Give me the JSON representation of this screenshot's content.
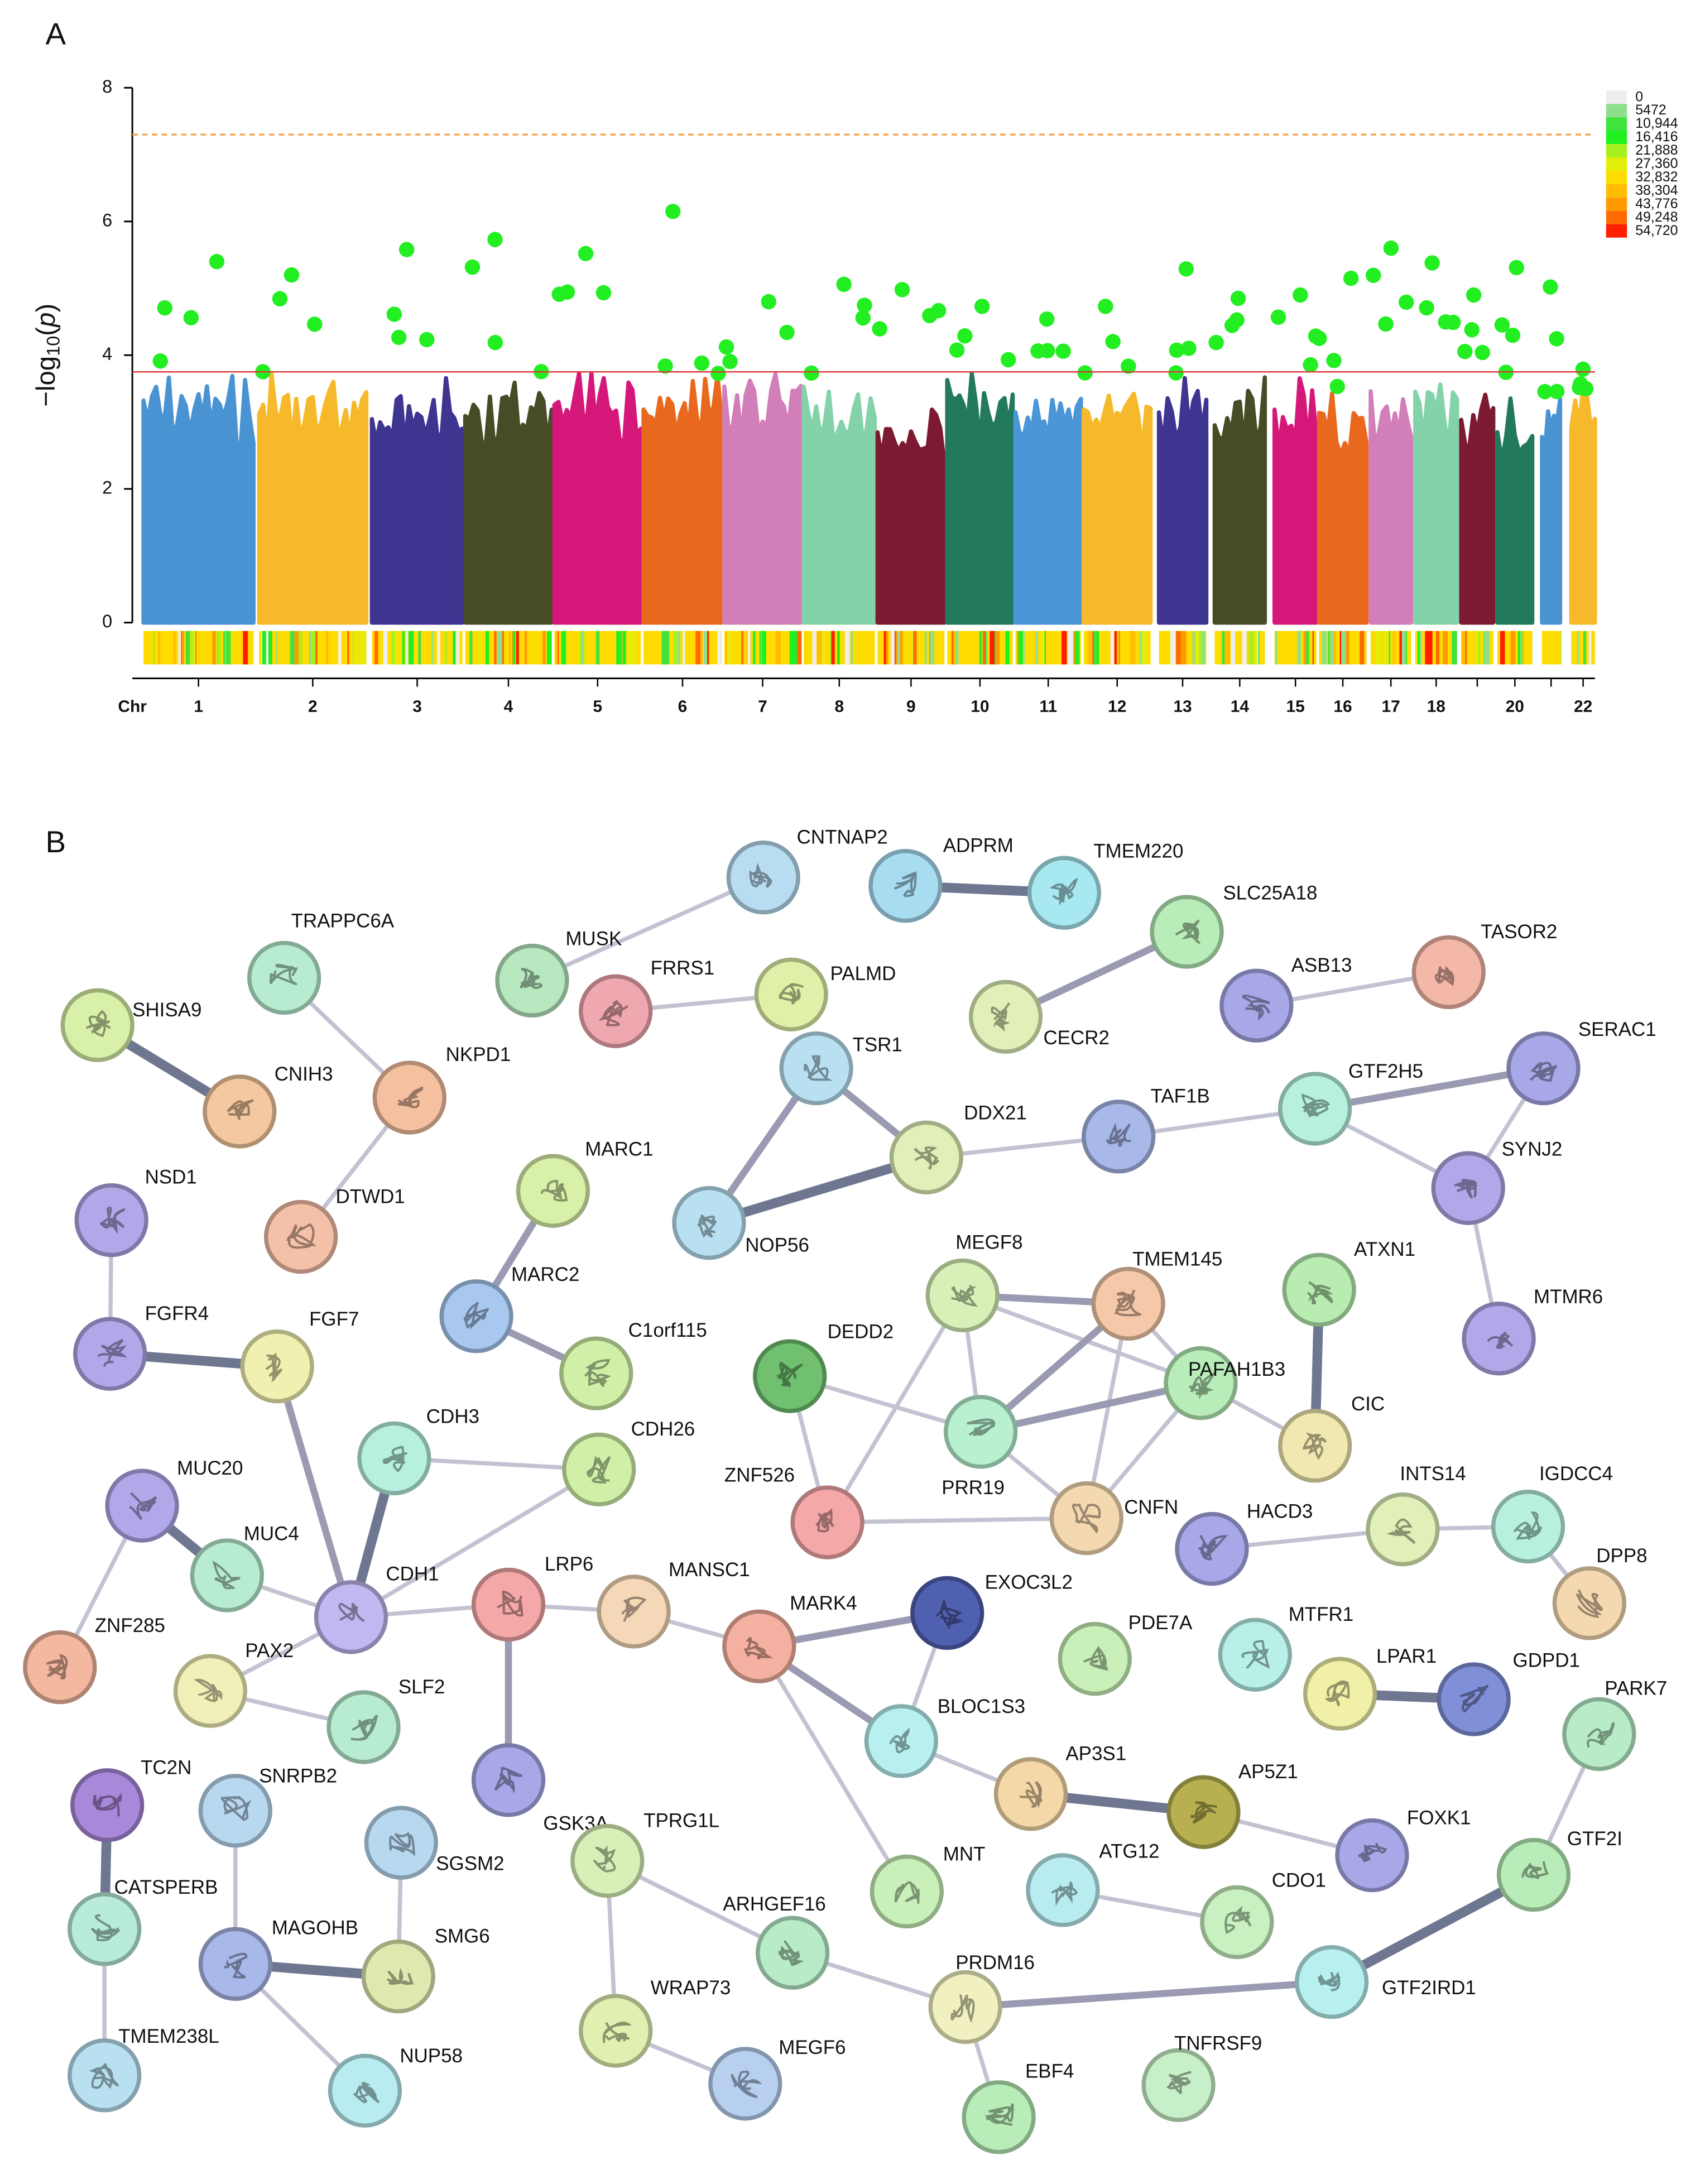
{
  "chart_data": {
    "type": "manhattan",
    "panel": "A",
    "ylabel": [
      "−log",
      "10",
      "(",
      "p",
      ")"
    ],
    "xlabel": "Chr",
    "categories": [
      "1",
      "2",
      "3",
      "4",
      "5",
      "6",
      "7",
      "8",
      "9",
      "10",
      "11",
      "12",
      "13",
      "14",
      "15",
      "16",
      "17",
      "18",
      null,
      "20",
      null,
      "22"
    ],
    "values": [
      5.4,
      5.2,
      5.58,
      5.73,
      5.52,
      6.15,
      4.8,
      5.06,
      4.98,
      4.73,
      4.54,
      4.73,
      5.29,
      4.85,
      4.9,
      5.15,
      5.6,
      5.38,
      4.9,
      5.31,
      5.02,
      3.79
    ],
    "bulk_values": [
      3.73,
      3.73,
      3.7,
      3.7,
      3.73,
      3.7,
      3.73,
      3.7,
      3.44,
      3.73,
      3.68,
      3.6,
      3.68,
      3.73,
      3.68,
      3.44,
      3.68,
      3.68,
      3.5,
      3.44,
      3.44,
      3.73
    ],
    "colors": [
      "#4a93d3",
      "#f6b92b",
      "#3e3591",
      "#474c27",
      "#d6177a",
      "#e8691e",
      "#d27eb8",
      "#84d2a9",
      "#7b1a31",
      "#23795e",
      "#4a96d6",
      "#f6b92b",
      "#3e3591",
      "#474c27",
      "#d6177a",
      "#e8691e",
      "#d27eb8",
      "#84d2a9",
      "#7b1a31",
      "#23795e",
      "#4a93d3",
      "#f6b92b"
    ],
    "peak_color": "#22ee22",
    "hlines": [
      {
        "value": 3.75,
        "color": "#e03a3a",
        "style": "solid"
      },
      {
        "value": 7.3,
        "color": "#f2a24a",
        "style": "dashed"
      }
    ],
    "ylim": [
      0,
      8
    ],
    "yticks": [
      0,
      2,
      4,
      6,
      8
    ],
    "density_legend": {
      "labels": [
        0,
        5472,
        {
          "value": 10944,
          "label": "10,944"
        },
        {
          "value": 16416,
          "label": "16,416"
        },
        {
          "value": 21888,
          "label": "21,888"
        },
        {
          "value": 27360,
          "label": "27,360"
        },
        {
          "value": 32832,
          "label": "32,832"
        },
        {
          "value": 38304,
          "label": "38,304"
        },
        {
          "value": 43776,
          "label": "43,776"
        },
        {
          "value": 49248,
          "label": "49,248"
        },
        {
          "value": 54720,
          "label": "54,720"
        }
      ],
      "colors": [
        "#eeeeee",
        "#8ee08e",
        "#3ee33e",
        "#1ff01f",
        "#a8ef1f",
        "#e2ee08",
        "#ffdc00",
        "#ffbd00",
        "#ff9a00",
        "#ff6a00",
        "#ff1e00"
      ]
    }
  },
  "network": {
    "panel": "B",
    "nodes": [
      "CNTNAP2",
      "ADPRM",
      "TMEM220",
      "SLC25A18",
      "TASOR2",
      "MUSK",
      "TRAPPC6A",
      "PALMD",
      "ASB13",
      "FRRS1",
      "CECR2",
      "SHISA9",
      "TSR1",
      "SERAC1",
      "NKPD1",
      "GTF2H5",
      "CNIH3",
      "DDX21",
      "TAF1B",
      "MARC1",
      "SYNJ2",
      "NSD1",
      "DTWD1",
      "NOP56",
      "MEGF8",
      "TMEM145",
      "ATXN1",
      "MTMR6",
      "MARC2",
      "C1orf115",
      "DEDD2",
      "FGFR4",
      "FGF7",
      "PAFAH1B3",
      "PRR19",
      "CIC",
      "CDH3",
      "CDH26",
      "MUC20",
      "ZNF526",
      "CNFN",
      "INTS14",
      "IGDCC4",
      "HACD3",
      "MUC4",
      "CDH1",
      "LRP6",
      "MANSC1",
      "DPP8",
      "EXOC3L2",
      "MARK4",
      "ZNF285",
      "PDE7A",
      "MTFR1",
      "PAX2",
      "LPAR1",
      "GDPD1",
      "SLF2",
      "BLOC1S3",
      "PARK7",
      "TC2N",
      "SNRPB2",
      "AP3S1",
      "AP5Z1",
      "SGSM2",
      "GSK3A",
      "FOXK1",
      "GTF2I",
      "TPRG1L",
      "CATSPERB",
      "MNT",
      "ATG12",
      "CDO1",
      "ARHGEF16",
      "MAGOHB",
      "SMG6",
      "WRAP73",
      "PRDM16",
      "GTF2IRD1",
      "TMEM238L",
      "NUP58",
      "MEGF6",
      "TNFRSF9",
      "EBF4"
    ],
    "edges": [
      [
        5,
        0
      ],
      [
        1,
        2
      ],
      [
        3,
        10
      ],
      [
        8,
        4
      ],
      [
        9,
        7
      ],
      [
        6,
        14
      ],
      [
        11,
        16
      ],
      [
        14,
        22
      ],
      [
        12,
        17
      ],
      [
        12,
        23
      ],
      [
        23,
        17
      ],
      [
        17,
        18
      ],
      [
        18,
        15
      ],
      [
        15,
        13
      ],
      [
        15,
        20
      ],
      [
        13,
        20
      ],
      [
        20,
        27
      ],
      [
        21,
        31
      ],
      [
        31,
        32
      ],
      [
        19,
        28
      ],
      [
        28,
        29
      ],
      [
        32,
        45
      ],
      [
        24,
        25
      ],
      [
        24,
        34
      ],
      [
        24,
        39
      ],
      [
        24,
        33
      ],
      [
        25,
        34
      ],
      [
        25,
        40
      ],
      [
        25,
        33
      ],
      [
        30,
        34
      ],
      [
        30,
        39
      ],
      [
        26,
        35
      ],
      [
        34,
        33
      ],
      [
        34,
        40
      ],
      [
        33,
        35
      ],
      [
        33,
        40
      ],
      [
        39,
        40
      ],
      [
        36,
        45
      ],
      [
        36,
        37
      ],
      [
        37,
        45
      ],
      [
        38,
        44
      ],
      [
        38,
        51
      ],
      [
        44,
        45
      ],
      [
        45,
        46
      ],
      [
        45,
        54
      ],
      [
        54,
        57
      ],
      [
        46,
        47
      ],
      [
        46,
        65
      ],
      [
        47,
        50
      ],
      [
        50,
        49
      ],
      [
        50,
        58
      ],
      [
        50,
        70
      ],
      [
        49,
        58
      ],
      [
        58,
        62
      ],
      [
        62,
        63
      ],
      [
        63,
        66
      ],
      [
        43,
        41
      ],
      [
        41,
        42
      ],
      [
        42,
        48
      ],
      [
        55,
        56
      ],
      [
        71,
        72
      ],
      [
        59,
        67
      ],
      [
        67,
        78
      ],
      [
        78,
        77
      ],
      [
        77,
        73
      ],
      [
        77,
        83
      ],
      [
        68,
        73
      ],
      [
        68,
        76
      ],
      [
        76,
        81
      ],
      [
        60,
        69
      ],
      [
        69,
        79
      ],
      [
        61,
        74
      ],
      [
        74,
        75
      ],
      [
        74,
        80
      ],
      [
        64,
        75
      ]
    ]
  }
}
